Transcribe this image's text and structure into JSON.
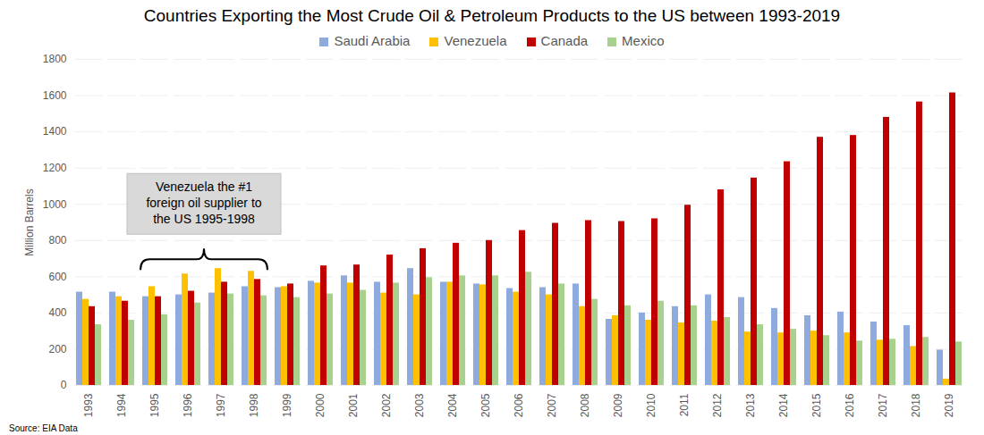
{
  "chart_data": {
    "type": "bar",
    "title": "Countries Exporting the Most Crude Oil & Petroleum Products to the US between 1993-2019",
    "y_label": "Million Barrels",
    "source": "Source: EIA Data",
    "categories": [
      "1993",
      "1994",
      "1995",
      "1996",
      "1997",
      "1998",
      "1999",
      "2000",
      "2001",
      "2002",
      "2003",
      "2004",
      "2005",
      "2006",
      "2007",
      "2008",
      "2009",
      "2010",
      "2011",
      "2012",
      "2013",
      "2014",
      "2015",
      "2016",
      "2017",
      "2018",
      "2019"
    ],
    "series": [
      {
        "name": "Saudi Arabia",
        "color": "#8faadc",
        "values": [
          515,
          515,
          490,
          500,
          510,
          545,
          540,
          575,
          605,
          570,
          645,
          570,
          560,
          535,
          540,
          560,
          365,
          400,
          435,
          500,
          485,
          425,
          385,
          405,
          350,
          330,
          195
        ]
      },
      {
        "name": "Venezuela",
        "color": "#ffc000",
        "values": [
          475,
          490,
          545,
          615,
          645,
          630,
          545,
          565,
          565,
          510,
          500,
          570,
          555,
          515,
          500,
          435,
          385,
          360,
          345,
          355,
          295,
          290,
          300,
          290,
          250,
          215,
          35
        ]
      },
      {
        "name": "Canada",
        "color": "#c00000",
        "values": [
          435,
          465,
          490,
          520,
          570,
          585,
          560,
          660,
          665,
          720,
          755,
          785,
          800,
          855,
          895,
          910,
          905,
          920,
          995,
          1080,
          1145,
          1235,
          1370,
          1380,
          1480,
          1565,
          1615
        ]
      },
      {
        "name": "Mexico",
        "color": "#a9d18e",
        "values": [
          335,
          360,
          390,
          455,
          505,
          495,
          485,
          505,
          525,
          565,
          595,
          605,
          605,
          625,
          560,
          475,
          440,
          465,
          440,
          375,
          335,
          310,
          275,
          245,
          255,
          265,
          240
        ]
      }
    ],
    "ylim": [
      0,
      1800
    ],
    "yticks": [
      0,
      200,
      400,
      600,
      800,
      1000,
      1200,
      1400,
      1600,
      1800
    ],
    "grid": true,
    "legend": "top",
    "annotations": [
      {
        "text": "Venezuela the #1\nforeign oil supplier to\nthe US 1995-1998",
        "x_start": "1995",
        "x_end": "1998"
      }
    ]
  }
}
